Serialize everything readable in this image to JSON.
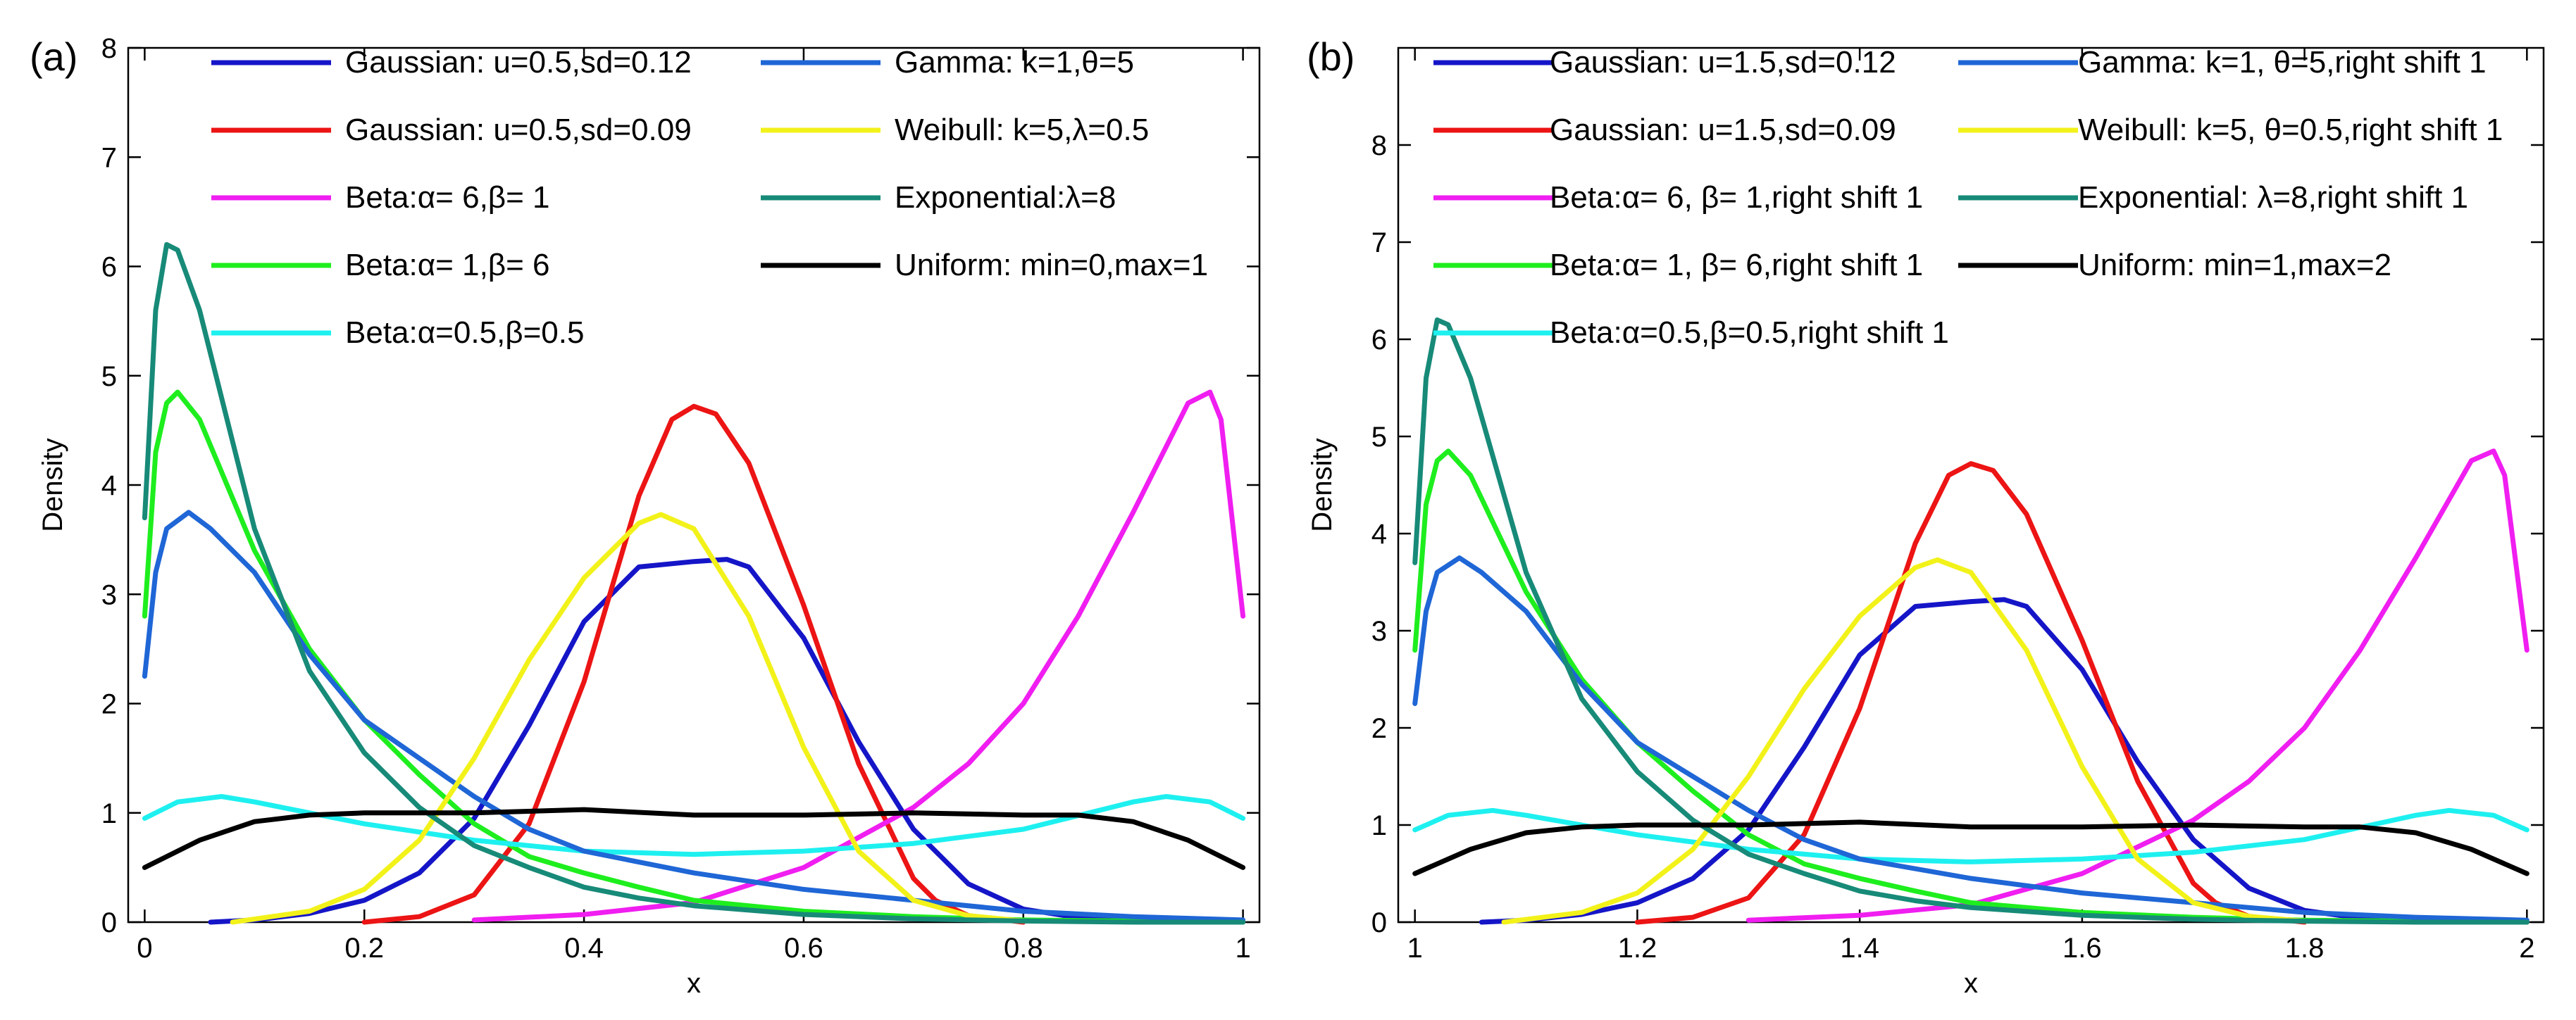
{
  "colors": {
    "gaussian_012": "#1515c8",
    "gaussian_009": "#ec1414",
    "beta_6_1": "#f01ef0",
    "beta_1_6": "#1eee1e",
    "beta_05_05": "#1ef0f0",
    "gamma": "#1f66d6",
    "weibull": "#f2f21a",
    "exponential": "#178a78",
    "uniform": "#000000"
  },
  "chart_data": [
    {
      "type": "line",
      "panel_label": "(a)",
      "xlabel": "x",
      "ylabel": "Density",
      "xlim": [
        -0.015,
        1.015
      ],
      "ylim": [
        0,
        8
      ],
      "xticks": [
        0,
        0.2,
        0.4,
        0.6,
        0.8,
        1
      ],
      "xtick_labels": [
        "0",
        "0.2",
        "0.4",
        "0.6",
        "0.8",
        "1"
      ],
      "yticks": [
        0,
        1,
        2,
        3,
        4,
        5,
        6,
        7,
        8
      ],
      "ytick_labels": [
        "0",
        "1",
        "2",
        "3",
        "4",
        "5",
        "6",
        "7",
        "8"
      ],
      "grid": false,
      "legend_placement": "top",
      "series": [
        {
          "key": "gaussian_012",
          "name": "Gaussian: u=0.5,sd=0.12",
          "color": "#1515c8",
          "legend_col": 0,
          "legend_row": 0,
          "x": [
            0.06,
            0.1,
            0.15,
            0.2,
            0.25,
            0.3,
            0.35,
            0.4,
            0.45,
            0.5,
            0.53,
            0.55,
            0.6,
            0.65,
            0.7,
            0.75,
            0.8,
            0.85,
            0.9,
            1.0
          ],
          "y": [
            0.0,
            0.02,
            0.08,
            0.2,
            0.45,
            0.95,
            1.8,
            2.75,
            3.25,
            3.3,
            3.32,
            3.25,
            2.6,
            1.65,
            0.85,
            0.35,
            0.12,
            0.04,
            0.02,
            0.0
          ]
        },
        {
          "key": "gaussian_009",
          "name": "Gaussian: u=0.5,sd=0.09",
          "color": "#ec1414",
          "legend_col": 0,
          "legend_row": 1,
          "x": [
            0.2,
            0.25,
            0.3,
            0.35,
            0.4,
            0.45,
            0.48,
            0.5,
            0.52,
            0.55,
            0.6,
            0.65,
            0.7,
            0.72,
            0.75,
            0.8
          ],
          "y": [
            0.0,
            0.05,
            0.25,
            0.9,
            2.2,
            3.9,
            4.6,
            4.72,
            4.65,
            4.2,
            2.9,
            1.45,
            0.4,
            0.2,
            0.06,
            0.0
          ]
        },
        {
          "key": "beta_6_1",
          "name": "Beta:α= 6,β= 1",
          "color": "#f01ef0",
          "legend_col": 0,
          "legend_row": 2,
          "x": [
            0.3,
            0.4,
            0.5,
            0.6,
            0.7,
            0.75,
            0.8,
            0.85,
            0.9,
            0.95,
            0.97,
            0.98,
            1.0
          ],
          "y": [
            0.02,
            0.07,
            0.18,
            0.5,
            1.05,
            1.45,
            2.0,
            2.8,
            3.75,
            4.75,
            4.85,
            4.6,
            2.8
          ]
        },
        {
          "key": "beta_1_6",
          "name": "Beta:α= 1,β= 6",
          "color": "#1eee1e",
          "legend_col": 0,
          "legend_row": 3,
          "x": [
            0,
            0.01,
            0.02,
            0.03,
            0.05,
            0.1,
            0.15,
            0.2,
            0.25,
            0.3,
            0.35,
            0.4,
            0.45,
            0.5,
            0.6,
            0.7,
            0.8,
            0.9,
            1.0
          ],
          "y": [
            2.8,
            4.3,
            4.75,
            4.85,
            4.6,
            3.4,
            2.5,
            1.85,
            1.35,
            0.9,
            0.6,
            0.45,
            0.32,
            0.2,
            0.1,
            0.05,
            0.02,
            0.01,
            0.0
          ]
        },
        {
          "key": "beta_05_05",
          "name": "Beta:α=0.5,β=0.5",
          "color": "#1ef0f0",
          "legend_col": 0,
          "legend_row": 4,
          "x": [
            0,
            0.03,
            0.07,
            0.1,
            0.2,
            0.3,
            0.4,
            0.5,
            0.6,
            0.7,
            0.8,
            0.9,
            0.93,
            0.97,
            1.0
          ],
          "y": [
            0.95,
            1.1,
            1.15,
            1.1,
            0.9,
            0.75,
            0.65,
            0.62,
            0.65,
            0.72,
            0.85,
            1.1,
            1.15,
            1.1,
            0.95
          ]
        },
        {
          "key": "gamma",
          "name": "Gamma: k=1,θ=5",
          "color": "#1f66d6",
          "legend_col": 1,
          "legend_row": 0,
          "x": [
            0,
            0.01,
            0.02,
            0.04,
            0.06,
            0.1,
            0.15,
            0.2,
            0.25,
            0.3,
            0.35,
            0.4,
            0.5,
            0.6,
            0.7,
            0.8,
            0.9,
            1.0
          ],
          "y": [
            2.25,
            3.2,
            3.6,
            3.75,
            3.6,
            3.2,
            2.45,
            1.85,
            1.5,
            1.15,
            0.85,
            0.65,
            0.45,
            0.3,
            0.2,
            0.1,
            0.05,
            0.02
          ]
        },
        {
          "key": "weibull",
          "name": "Weibull: k=5,λ=0.5",
          "color": "#f2f21a",
          "legend_col": 1,
          "legend_row": 1,
          "x": [
            0.08,
            0.15,
            0.2,
            0.25,
            0.3,
            0.35,
            0.4,
            0.45,
            0.47,
            0.5,
            0.55,
            0.6,
            0.65,
            0.7,
            0.75,
            0.8
          ],
          "y": [
            0.0,
            0.1,
            0.3,
            0.75,
            1.5,
            2.4,
            3.15,
            3.65,
            3.73,
            3.6,
            2.8,
            1.6,
            0.65,
            0.2,
            0.06,
            0.01
          ]
        },
        {
          "key": "exponential",
          "name": "Exponential:λ=8",
          "color": "#178a78",
          "legend_col": 1,
          "legend_row": 2,
          "x": [
            0,
            0.01,
            0.02,
            0.03,
            0.05,
            0.1,
            0.15,
            0.2,
            0.25,
            0.3,
            0.35,
            0.4,
            0.45,
            0.5,
            0.6,
            0.7,
            0.8,
            0.9,
            1.0
          ],
          "y": [
            3.7,
            5.6,
            6.2,
            6.15,
            5.6,
            3.6,
            2.3,
            1.55,
            1.05,
            0.7,
            0.5,
            0.32,
            0.22,
            0.15,
            0.07,
            0.03,
            0.01,
            0.0,
            0.0
          ]
        },
        {
          "key": "uniform",
          "name": "Uniform: min=0,max=1",
          "color": "#000000",
          "legend_col": 1,
          "legend_row": 3,
          "x": [
            0,
            0.05,
            0.1,
            0.15,
            0.2,
            0.3,
            0.4,
            0.5,
            0.6,
            0.7,
            0.8,
            0.85,
            0.9,
            0.95,
            1.0
          ],
          "y": [
            0.5,
            0.75,
            0.92,
            0.98,
            1.0,
            1.0,
            1.03,
            0.98,
            0.98,
            1.0,
            0.98,
            0.98,
            0.92,
            0.75,
            0.5
          ]
        }
      ]
    },
    {
      "type": "line",
      "panel_label": "(b)",
      "xlabel": "x",
      "ylabel": "Density",
      "xlim": [
        0.985,
        2.015
      ],
      "ylim": [
        0,
        9
      ],
      "xticks": [
        1,
        1.2,
        1.4,
        1.6,
        1.8,
        2
      ],
      "xtick_labels": [
        "1",
        "1.2",
        "1.4",
        "1.6",
        "1.8",
        "2"
      ],
      "yticks": [
        0,
        1,
        2,
        3,
        4,
        5,
        6,
        7,
        8
      ],
      "ytick_labels": [
        "0",
        "1",
        "2",
        "3",
        "4",
        "5",
        "6",
        "7",
        "8"
      ],
      "grid": false,
      "legend_placement": "top",
      "series": [
        {
          "key": "gaussian_012",
          "name": "Gaussian: u=1.5,sd=0.12",
          "color": "#1515c8",
          "legend_col": 0,
          "legend_row": 0,
          "x": [
            1.06,
            1.1,
            1.15,
            1.2,
            1.25,
            1.3,
            1.35,
            1.4,
            1.45,
            1.5,
            1.53,
            1.55,
            1.6,
            1.65,
            1.7,
            1.75,
            1.8,
            1.85,
            1.9,
            2.0
          ],
          "y": [
            0.0,
            0.02,
            0.08,
            0.2,
            0.45,
            0.95,
            1.8,
            2.75,
            3.25,
            3.3,
            3.32,
            3.25,
            2.6,
            1.65,
            0.85,
            0.35,
            0.12,
            0.04,
            0.02,
            0.0
          ]
        },
        {
          "key": "gaussian_009",
          "name": "Gaussian: u=1.5,sd=0.09",
          "color": "#ec1414",
          "legend_col": 0,
          "legend_row": 1,
          "x": [
            1.2,
            1.25,
            1.3,
            1.35,
            1.4,
            1.45,
            1.48,
            1.5,
            1.52,
            1.55,
            1.6,
            1.65,
            1.7,
            1.72,
            1.75,
            1.8
          ],
          "y": [
            0.0,
            0.05,
            0.25,
            0.9,
            2.2,
            3.9,
            4.6,
            4.72,
            4.65,
            4.2,
            2.9,
            1.45,
            0.4,
            0.2,
            0.06,
            0.0
          ]
        },
        {
          "key": "beta_6_1",
          "name": "Beta:α= 6, β= 1,right shift 1",
          "color": "#f01ef0",
          "legend_col": 0,
          "legend_row": 2,
          "x": [
            1.3,
            1.4,
            1.5,
            1.6,
            1.7,
            1.75,
            1.8,
            1.85,
            1.9,
            1.95,
            1.97,
            1.98,
            2.0
          ],
          "y": [
            0.02,
            0.07,
            0.18,
            0.5,
            1.05,
            1.45,
            2.0,
            2.8,
            3.75,
            4.75,
            4.85,
            4.6,
            2.8
          ]
        },
        {
          "key": "beta_1_6",
          "name": "Beta:α= 1, β= 6,right shift 1",
          "color": "#1eee1e",
          "legend_col": 0,
          "legend_row": 3,
          "x": [
            1,
            1.01,
            1.02,
            1.03,
            1.05,
            1.1,
            1.15,
            1.2,
            1.25,
            1.3,
            1.35,
            1.4,
            1.45,
            1.5,
            1.6,
            1.7,
            1.8,
            1.9,
            2.0
          ],
          "y": [
            2.8,
            4.3,
            4.75,
            4.85,
            4.6,
            3.4,
            2.5,
            1.85,
            1.35,
            0.9,
            0.6,
            0.45,
            0.32,
            0.2,
            0.1,
            0.05,
            0.02,
            0.01,
            0.0
          ]
        },
        {
          "key": "beta_05_05",
          "name": "Beta:α=0.5,β=0.5,right shift 1",
          "color": "#1ef0f0",
          "legend_col": 0,
          "legend_row": 4,
          "x": [
            1,
            1.03,
            1.07,
            1.1,
            1.2,
            1.3,
            1.4,
            1.5,
            1.6,
            1.7,
            1.8,
            1.9,
            1.93,
            1.97,
            2.0
          ],
          "y": [
            0.95,
            1.1,
            1.15,
            1.1,
            0.9,
            0.75,
            0.65,
            0.62,
            0.65,
            0.72,
            0.85,
            1.1,
            1.15,
            1.1,
            0.95
          ]
        },
        {
          "key": "gamma",
          "name": "Gamma: k=1, θ=5,right shift 1",
          "color": "#1f66d6",
          "legend_col": 1,
          "legend_row": 0,
          "x": [
            1,
            1.01,
            1.02,
            1.04,
            1.06,
            1.1,
            1.15,
            1.2,
            1.25,
            1.3,
            1.35,
            1.4,
            1.5,
            1.6,
            1.7,
            1.8,
            1.9,
            2.0
          ],
          "y": [
            2.25,
            3.2,
            3.6,
            3.75,
            3.6,
            3.2,
            2.45,
            1.85,
            1.5,
            1.15,
            0.85,
            0.65,
            0.45,
            0.3,
            0.2,
            0.1,
            0.05,
            0.02
          ]
        },
        {
          "key": "weibull",
          "name": "Weibull: k=5, θ=0.5,right shift 1",
          "color": "#f2f21a",
          "legend_col": 1,
          "legend_row": 1,
          "x": [
            1.08,
            1.15,
            1.2,
            1.25,
            1.3,
            1.35,
            1.4,
            1.45,
            1.47,
            1.5,
            1.55,
            1.6,
            1.65,
            1.7,
            1.75,
            1.8
          ],
          "y": [
            0.0,
            0.1,
            0.3,
            0.75,
            1.5,
            2.4,
            3.15,
            3.65,
            3.73,
            3.6,
            2.8,
            1.6,
            0.65,
            0.2,
            0.06,
            0.01
          ]
        },
        {
          "key": "exponential",
          "name": "Exponential: λ=8,right shift 1",
          "color": "#178a78",
          "legend_col": 1,
          "legend_row": 2,
          "x": [
            1,
            1.01,
            1.02,
            1.03,
            1.05,
            1.1,
            1.15,
            1.2,
            1.25,
            1.3,
            1.35,
            1.4,
            1.45,
            1.5,
            1.6,
            1.7,
            1.8,
            1.9,
            2.0
          ],
          "y": [
            3.7,
            5.6,
            6.2,
            6.15,
            5.6,
            3.6,
            2.3,
            1.55,
            1.05,
            0.7,
            0.5,
            0.32,
            0.22,
            0.15,
            0.07,
            0.03,
            0.01,
            0.0,
            0.0
          ]
        },
        {
          "key": "uniform",
          "name": "Uniform: min=1,max=2",
          "color": "#000000",
          "legend_col": 1,
          "legend_row": 3,
          "x": [
            1,
            1.05,
            1.1,
            1.15,
            1.2,
            1.3,
            1.4,
            1.5,
            1.6,
            1.7,
            1.8,
            1.85,
            1.9,
            1.95,
            2.0
          ],
          "y": [
            0.5,
            0.75,
            0.92,
            0.98,
            1.0,
            1.0,
            1.03,
            0.98,
            0.98,
            1.0,
            0.98,
            0.98,
            0.92,
            0.75,
            0.5
          ]
        }
      ]
    }
  ]
}
